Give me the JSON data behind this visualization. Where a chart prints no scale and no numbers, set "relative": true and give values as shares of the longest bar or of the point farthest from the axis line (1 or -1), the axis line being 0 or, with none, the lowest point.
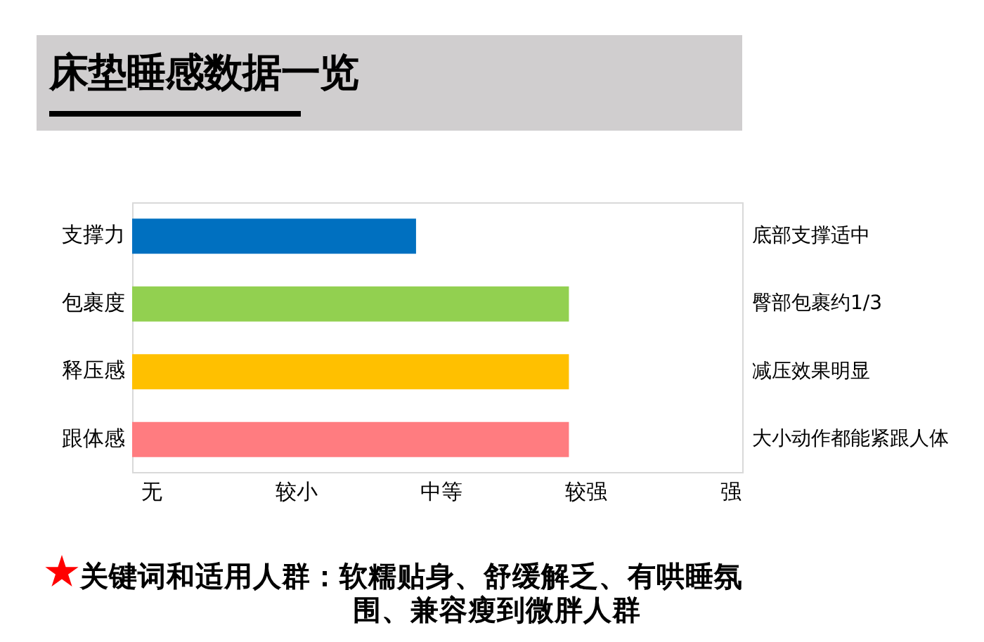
{
  "chart_data": {
    "type": "bar",
    "orientation": "horizontal",
    "title": "床垫睡感数据一览",
    "relative": true,
    "categories": [
      "支撑力",
      "包裹度",
      "释压感",
      "跟体感"
    ],
    "values": [
      0.65,
      1,
      1,
      1
    ],
    "colors": [
      "#0070c0",
      "#92d050",
      "#ffc000",
      "#ff7c80"
    ],
    "grid": false,
    "legend": false,
    "annotations": [
      "底部支撑适中",
      "臀部包裹约1/3",
      "减压效果明显",
      "大小动作都能紧跟人体",
      "无",
      "较小",
      "中等",
      "较强",
      "强",
      "关键词和适用人群：软糯贴身、舒缓解乏、有哄睡氛围、兼容瘦到微胖人群"
    ]
  }
}
